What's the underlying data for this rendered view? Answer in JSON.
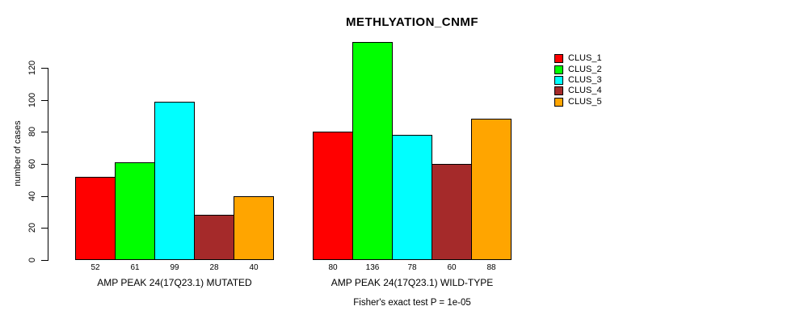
{
  "title": "METHLYATION_CNMF",
  "footer": "Fisher's exact test P = 1e-05",
  "chart_data": {
    "type": "bar",
    "title": "METHLYATION_CNMF",
    "xlabel": "",
    "ylabel": "number of cases",
    "yticks": [
      0,
      20,
      40,
      60,
      80,
      100,
      120
    ],
    "ylim": [
      0,
      136
    ],
    "grid": false,
    "legend_position": "right-outside",
    "categories": [
      "AMP PEAK 24(17Q23.1) MUTATED",
      "AMP PEAK 24(17Q23.1) WILD-TYPE"
    ],
    "series": [
      {
        "name": "CLUS_1",
        "color": "#FF0000",
        "values": [
          52,
          80
        ]
      },
      {
        "name": "CLUS_2",
        "color": "#00FF00",
        "values": [
          61,
          136
        ]
      },
      {
        "name": "CLUS_3",
        "color": "#00FFFF",
        "values": [
          99,
          78
        ]
      },
      {
        "name": "CLUS_4",
        "color": "#A52A2A",
        "values": [
          28,
          60
        ]
      },
      {
        "name": "CLUS_5",
        "color": "#FFA500",
        "values": [
          40,
          88
        ]
      }
    ],
    "bar_value_labels": [
      [
        "52",
        "61",
        "99",
        "28",
        "40"
      ],
      [
        "80",
        "136",
        "78",
        "60",
        "88"
      ]
    ],
    "annotation": "Fisher's exact test P = 1e-05",
    "bar_border_color": "#000000",
    "axis_color": "#000000"
  }
}
